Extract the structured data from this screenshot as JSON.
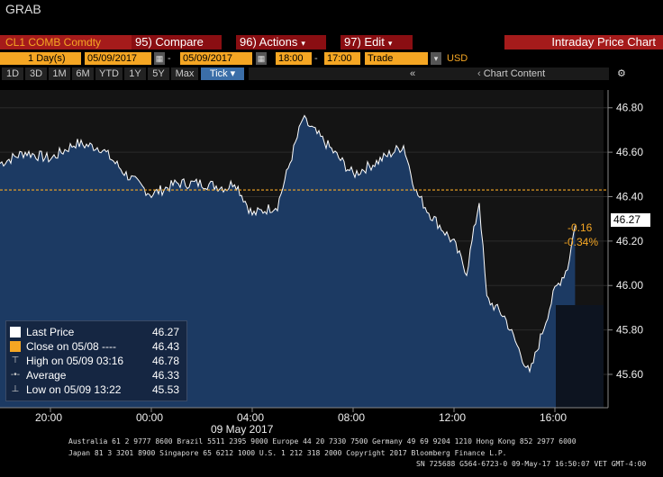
{
  "window": {
    "title": "GRAB"
  },
  "function_bar": {
    "ticker": "CL1 COMB Comdty",
    "compare": "95) Compare",
    "actions": "96) Actions",
    "edit": "97) Edit",
    "chart_title": "Intraday Price Chart"
  },
  "settings": {
    "period_num": "1",
    "period_unit": "Day(s)",
    "start_date": "05/09/2017",
    "end_date": "05/09/2017",
    "start_time": "18:00",
    "end_time": "17:00",
    "field": "Trade",
    "currency": "USD"
  },
  "range_buttons": [
    "1D",
    "3D",
    "1M",
    "6M",
    "YTD",
    "1Y",
    "5Y",
    "Max"
  ],
  "tick_button": "Tick",
  "chart_content": "Chart Content",
  "gear_icon": "gear-icon",
  "legend": {
    "last": {
      "label": "Last Price",
      "value": "46.27"
    },
    "close": {
      "label": "Close on 05/08 ----",
      "value": "46.43"
    },
    "high": {
      "label": "High on 05/09 03:16",
      "value": "46.78"
    },
    "average": {
      "label": "Average",
      "value": "46.33"
    },
    "low": {
      "label": "Low on 05/09 13:22",
      "value": "45.53"
    }
  },
  "tags": {
    "last": "46.27",
    "change": "-0.16",
    "change_pct": "-0.34%"
  },
  "chart_data": {
    "type": "line",
    "x_ticks": [
      "20:00",
      "00:00",
      "04:00",
      "08:00",
      "12:00",
      "16:00"
    ],
    "date_label": "09 May 2017",
    "y_ticks": [
      "46.80",
      "46.60",
      "46.40",
      "46.20",
      "46.00",
      "45.80",
      "45.60"
    ],
    "ylim": [
      45.45,
      46.88
    ],
    "prior_close": 46.43,
    "x_hours_since_18": [
      0,
      1,
      2,
      3,
      4,
      5,
      6,
      7,
      8,
      9,
      9.3,
      10,
      11,
      12,
      13,
      14,
      15,
      16,
      16.5,
      17,
      18,
      18.5,
      19,
      19.3,
      20,
      21,
      22,
      22.5,
      22.8
    ],
    "values": [
      46.55,
      46.6,
      46.57,
      46.64,
      46.62,
      46.5,
      46.41,
      46.46,
      46.46,
      46.44,
      46.47,
      46.32,
      46.36,
      46.75,
      46.63,
      46.5,
      46.56,
      46.63,
      46.42,
      46.33,
      46.19,
      46.06,
      46.38,
      45.94,
      45.86,
      45.6,
      45.98,
      46.08,
      46.27
    ],
    "colors": {
      "line": "#ffffff",
      "area": "#1c3a63",
      "close_line": "#f5a623"
    }
  },
  "footer": {
    "line1": "Australia 61 2 9777 8600 Brazil 5511 2395 9000 Europe 44 20 7330 7500 Germany 49 69 9204 1210 Hong Kong 852 2977 6000",
    "line2": "Japan 81 3 3201 8900        Singapore 65 6212 1000        U.S. 1 212 318 2000              Copyright 2017 Bloomberg Finance L.P.",
    "line3": "SN 725688 G564-6723-0 09-May-17 16:50:07 VET  GMT-4:00"
  }
}
